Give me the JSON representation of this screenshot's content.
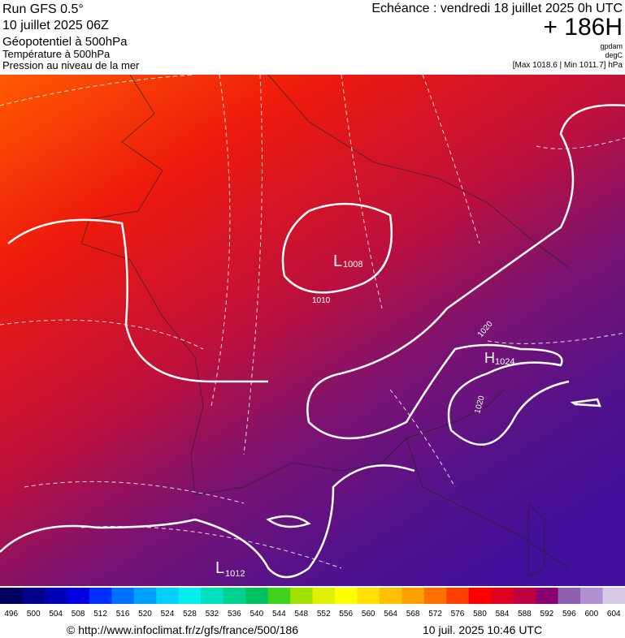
{
  "header": {
    "run": "Run GFS 0.5°",
    "date": "10 juillet 2025 06Z",
    "field1": "Géopotentiel à 500hPa",
    "field2": "Température à 500hPa",
    "field3": "Pression au niveau de la mer",
    "valid": "Echéance : vendredi 18 juillet 2025 0h UTC",
    "lead": "+ 186H",
    "unit1": "gpdam",
    "unit2": "degC",
    "range": "[Max 1018.6 | Min 1011.7] hPa"
  },
  "map": {
    "centers": [
      {
        "symbol": "L",
        "value": "1008"
      },
      {
        "symbol": "H",
        "value": "1024"
      },
      {
        "symbol": "L",
        "value": "1012"
      }
    ],
    "isobar_labels": [
      "1010",
      "1020",
      "1020"
    ]
  },
  "colorbar": {
    "labels": [
      496,
      500,
      504,
      508,
      512,
      516,
      520,
      524,
      528,
      532,
      536,
      540,
      544,
      548,
      552,
      556,
      560,
      564,
      568,
      572,
      576,
      580,
      584,
      588,
      592,
      596,
      600,
      604
    ],
    "colors": [
      "#000060",
      "#00008a",
      "#0000b4",
      "#0000e0",
      "#0030ff",
      "#0070ff",
      "#00a0ff",
      "#00d0ff",
      "#00f0f0",
      "#00e0c0",
      "#00d090",
      "#00c060",
      "#40d020",
      "#a0e000",
      "#e0f000",
      "#ffff00",
      "#ffe000",
      "#ffc000",
      "#ffa000",
      "#ff7000",
      "#ff4000",
      "#ff0000",
      "#e00020",
      "#c00040",
      "#8a0070",
      "#9060b0",
      "#b090d0",
      "#d8c8e8"
    ]
  },
  "footer": {
    "url": "© http://www.infoclimat.fr/z/gfs/france/500/186",
    "time": "10 juil. 2025 10:46 UTC"
  }
}
